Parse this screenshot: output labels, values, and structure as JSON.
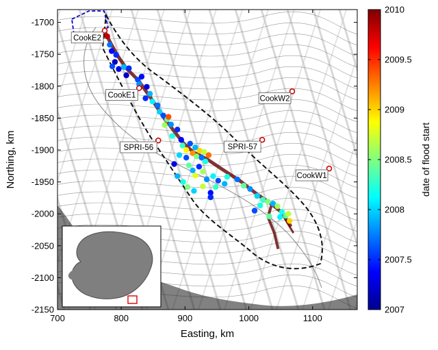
{
  "chart_data": {
    "type": "scatter",
    "title": "",
    "xlabel": "Easting, km",
    "ylabel": "Northing, km",
    "xlim": [
      700,
      1170
    ],
    "ylim": [
      -2150,
      -1680
    ],
    "x_ticks": [
      700,
      800,
      900,
      1000,
      1100
    ],
    "y_ticks": [
      -1700,
      -1750,
      -1800,
      -1850,
      -1900,
      -1950,
      -2000,
      -2050,
      -2100,
      -2150
    ],
    "colorbar": {
      "label": "date of flood start",
      "range": [
        2007,
        2010
      ],
      "ticks": [
        "2007",
        "2007.5",
        "2008",
        "2008.5",
        "2009",
        "2009.5",
        "2010"
      ]
    },
    "stations": [
      {
        "name": "CookE2",
        "x": 774,
        "y": -1713
      },
      {
        "name": "CookE1",
        "x": 828,
        "y": -1803
      },
      {
        "name": "CookW2",
        "x": 1068,
        "y": -1808
      },
      {
        "name": "SPRI-56",
        "x": 858,
        "y": -1885
      },
      {
        "name": "SPRI-57",
        "x": 1021,
        "y": -1884
      },
      {
        "name": "CookW1",
        "x": 1126,
        "y": -1929
      }
    ],
    "series": [
      {
        "points": [
          [
            778,
            -1722,
            2009.8
          ],
          [
            782,
            -1735,
            2007.7
          ],
          [
            785,
            -1745,
            2007.4
          ],
          [
            792,
            -1751,
            2007.5
          ],
          [
            790,
            -1762,
            2007.2
          ],
          [
            786,
            -1769,
            2007.6
          ],
          [
            796,
            -1773,
            2007.3
          ],
          [
            804,
            -1770,
            2007.9
          ],
          [
            812,
            -1772,
            2007.5
          ],
          [
            808,
            -1783,
            2007.2
          ],
          [
            826,
            -1790,
            2007.6
          ],
          [
            832,
            -1785,
            2007.4
          ],
          [
            828,
            -1797,
            2007.8
          ],
          [
            840,
            -1801,
            2007.3
          ],
          [
            845,
            -1812,
            2007.9
          ],
          [
            838,
            -1819,
            2007.5
          ],
          [
            849,
            -1824,
            2008.1
          ],
          [
            857,
            -1830,
            2007.7
          ],
          [
            860,
            -1840,
            2008.0
          ],
          [
            866,
            -1846,
            2007.6
          ],
          [
            872,
            -1852,
            2008.4
          ],
          [
            878,
            -1860,
            2007.8
          ],
          [
            868,
            -1861,
            2008.6
          ],
          [
            888,
            -1868,
            2007.5
          ],
          [
            880,
            -1878,
            2008.2
          ],
          [
            894,
            -1884,
            2007.4
          ],
          [
            896,
            -1893,
            2008.3
          ],
          [
            902,
            -1900,
            2008.9
          ],
          [
            908,
            -1890,
            2007.6
          ],
          [
            912,
            -1905,
            2009.2
          ],
          [
            916,
            -1896,
            2007.9
          ],
          [
            918,
            -1910,
            2008.5
          ],
          [
            923,
            -1901,
            2009.0
          ],
          [
            926,
            -1912,
            2007.7
          ],
          [
            930,
            -1903,
            2008.7
          ],
          [
            932,
            -1918,
            2008.2
          ],
          [
            937,
            -1908,
            2009.3
          ],
          [
            902,
            -1912,
            2007.6
          ],
          [
            906,
            -1924,
            2008.4
          ],
          [
            912,
            -1932,
            2007.9
          ],
          [
            916,
            -1940,
            2008.8
          ],
          [
            922,
            -1926,
            2007.5
          ],
          [
            928,
            -1934,
            2008.6
          ],
          [
            934,
            -1946,
            2007.8
          ],
          [
            944,
            -1941,
            2008.1
          ],
          [
            952,
            -1948,
            2007.6
          ],
          [
            948,
            -1958,
            2008.3
          ],
          [
            897,
            -1950,
            2008.2
          ],
          [
            904,
            -1958,
            2008.5
          ],
          [
            914,
            -1964,
            2008.0
          ],
          [
            928,
            -1957,
            2008.7
          ],
          [
            940,
            -1967,
            2007.4
          ],
          [
            962,
            -1953,
            2007.9
          ],
          [
            966,
            -1942,
            2008.2
          ],
          [
            982,
            -1946,
            2007.7
          ],
          [
            992,
            -1956,
            2008.4
          ],
          [
            1002,
            -1961,
            2007.8
          ],
          [
            1013,
            -1972,
            2008.0
          ],
          [
            1022,
            -1978,
            2008.3
          ],
          [
            1030,
            -1981,
            2008.5
          ],
          [
            1038,
            -1984,
            2007.9
          ],
          [
            1045,
            -1988,
            2008.6
          ],
          [
            1052,
            -1997,
            2008.2
          ],
          [
            1058,
            -2003,
            2008.4
          ],
          [
            1064,
            -2011,
            2009.0
          ],
          [
            1062,
            -2000,
            2008.7
          ],
          [
            1049,
            -2005,
            2008.1
          ],
          [
            1032,
            -2004,
            2008.4
          ],
          [
            1009,
            -1995,
            2007.6
          ],
          [
            1018,
            -1987,
            2008.2
          ],
          [
            940,
            -1974,
            2007.5
          ],
          [
            888,
            -1941,
            2007.9
          ],
          [
            883,
            -1922,
            2007.3
          ],
          [
            891,
            -1908,
            2008.0
          ],
          [
            874,
            -1848,
            2009.4
          ]
        ]
      }
    ],
    "tracks_note": "",
    "inset_label": ""
  }
}
